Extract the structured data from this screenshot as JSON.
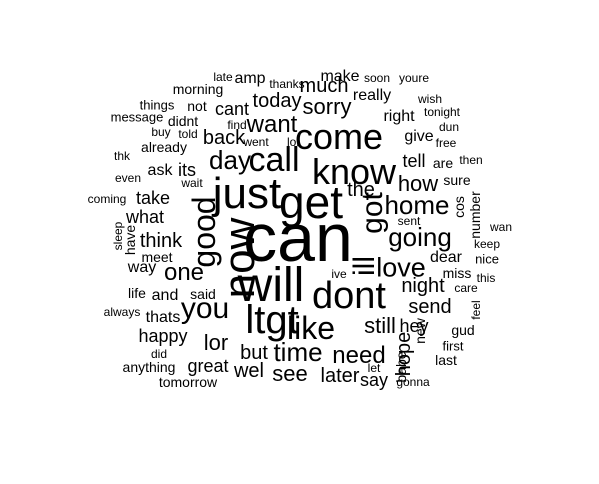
{
  "cloud": {
    "background": "#ffffff",
    "text_color": "#000000",
    "words": [
      {
        "text": "can",
        "weight": 68
      },
      {
        "text": "will",
        "weight": 48
      },
      {
        "text": "get",
        "weight": 46
      },
      {
        "text": "just",
        "weight": 44
      },
      {
        "text": "now",
        "weight": 44
      },
      {
        "text": "ltgt",
        "weight": 40
      },
      {
        "text": "dont",
        "weight": 38
      },
      {
        "text": "know",
        "weight": 36
      },
      {
        "text": "come",
        "weight": 36
      },
      {
        "text": "call",
        "weight": 34
      },
      {
        "text": "good",
        "weight": 32
      },
      {
        "text": "like",
        "weight": 32
      },
      {
        "text": "you",
        "weight": 30
      },
      {
        "text": "ill",
        "weight": 30
      },
      {
        "text": "got",
        "weight": 30
      },
      {
        "text": "love",
        "weight": 27
      },
      {
        "text": "home",
        "weight": 26
      },
      {
        "text": "going",
        "weight": 26
      },
      {
        "text": "time",
        "weight": 26
      },
      {
        "text": "day",
        "weight": 26
      },
      {
        "text": "want",
        "weight": 24
      },
      {
        "text": "one",
        "weight": 24
      },
      {
        "text": "need",
        "weight": 24
      },
      {
        "text": "sorry",
        "weight": 22
      },
      {
        "text": "lor",
        "weight": 22
      },
      {
        "text": "how",
        "weight": 22
      },
      {
        "text": "still",
        "weight": 22
      },
      {
        "text": "see",
        "weight": 22
      },
      {
        "text": "hope",
        "weight": 20
      },
      {
        "text": "later",
        "weight": 20
      },
      {
        "text": "wel",
        "weight": 20
      },
      {
        "text": "night",
        "weight": 20
      },
      {
        "text": "the",
        "weight": 20
      },
      {
        "text": "today",
        "weight": 20
      },
      {
        "text": "think",
        "weight": 20
      },
      {
        "text": "but",
        "weight": 20
      },
      {
        "text": "back",
        "weight": 20
      },
      {
        "text": "much",
        "weight": 20
      },
      {
        "text": "send",
        "weight": 20
      },
      {
        "text": "great",
        "weight": 18
      },
      {
        "text": "take",
        "weight": 18
      },
      {
        "text": "cant",
        "weight": 18
      },
      {
        "text": "tell",
        "weight": 18
      },
      {
        "text": "hey",
        "weight": 18
      },
      {
        "text": "say",
        "weight": 18
      },
      {
        "text": "happy",
        "weight": 18
      },
      {
        "text": "what",
        "weight": 18
      },
      {
        "text": "its",
        "weight": 18
      },
      {
        "text": "really",
        "weight": 16
      },
      {
        "text": "give",
        "weight": 16
      },
      {
        "text": "way",
        "weight": 16
      },
      {
        "text": "thats",
        "weight": 16
      },
      {
        "text": "ask",
        "weight": 16
      },
      {
        "text": "and",
        "weight": 16
      },
      {
        "text": "make",
        "weight": 16
      },
      {
        "text": "amp",
        "weight": 16
      },
      {
        "text": "right",
        "weight": 16
      },
      {
        "text": "dear",
        "weight": 16
      },
      {
        "text": "miss",
        "weight": 14
      },
      {
        "text": "already",
        "weight": 14
      },
      {
        "text": "meet",
        "weight": 14
      },
      {
        "text": "said",
        "weight": 14
      },
      {
        "text": "sure",
        "weight": 14
      },
      {
        "text": "number",
        "weight": 14
      },
      {
        "text": "cos",
        "weight": 14
      },
      {
        "text": "babe",
        "weight": 14
      },
      {
        "text": "new",
        "weight": 14
      },
      {
        "text": "last",
        "weight": 14
      },
      {
        "text": "morning",
        "weight": 14
      },
      {
        "text": "tomorrow",
        "weight": 14
      },
      {
        "text": "anything",
        "weight": 14
      },
      {
        "text": "are",
        "weight": 14
      },
      {
        "text": "gud",
        "weight": 14
      },
      {
        "text": "life",
        "weight": 14
      },
      {
        "text": "have",
        "weight": 14
      },
      {
        "text": "didnt",
        "weight": 14
      },
      {
        "text": "not",
        "weight": 14
      },
      {
        "text": "first",
        "weight": 13
      },
      {
        "text": "nice",
        "weight": 13
      },
      {
        "text": "things",
        "weight": 13
      },
      {
        "text": "message",
        "weight": 13
      },
      {
        "text": "wish",
        "weight": 12
      },
      {
        "text": "tonight",
        "weight": 12
      },
      {
        "text": "dun",
        "weight": 12
      },
      {
        "text": "free",
        "weight": 12
      },
      {
        "text": "then",
        "weight": 12
      },
      {
        "text": "sent",
        "weight": 12
      },
      {
        "text": "keep",
        "weight": 12
      },
      {
        "text": "wan",
        "weight": 12
      },
      {
        "text": "this",
        "weight": 12
      },
      {
        "text": "care",
        "weight": 12
      },
      {
        "text": "feel",
        "weight": 12
      },
      {
        "text": "went",
        "weight": 12
      },
      {
        "text": "lol",
        "weight": 12
      },
      {
        "text": "find",
        "weight": 12
      },
      {
        "text": "thanks",
        "weight": 12
      },
      {
        "text": "soon",
        "weight": 12
      },
      {
        "text": "youre",
        "weight": 12
      },
      {
        "text": "late",
        "weight": 12
      },
      {
        "text": "buy",
        "weight": 12
      },
      {
        "text": "told",
        "weight": 12
      },
      {
        "text": "thk",
        "weight": 12
      },
      {
        "text": "even",
        "weight": 12
      },
      {
        "text": "wait",
        "weight": 12
      },
      {
        "text": "coming",
        "weight": 12
      },
      {
        "text": "sleep",
        "weight": 12
      },
      {
        "text": "always",
        "weight": 12
      },
      {
        "text": "did",
        "weight": 12
      },
      {
        "text": "let",
        "weight": 12
      },
      {
        "text": "gonna",
        "weight": 12
      },
      {
        "text": "ive",
        "weight": 12
      }
    ]
  }
}
